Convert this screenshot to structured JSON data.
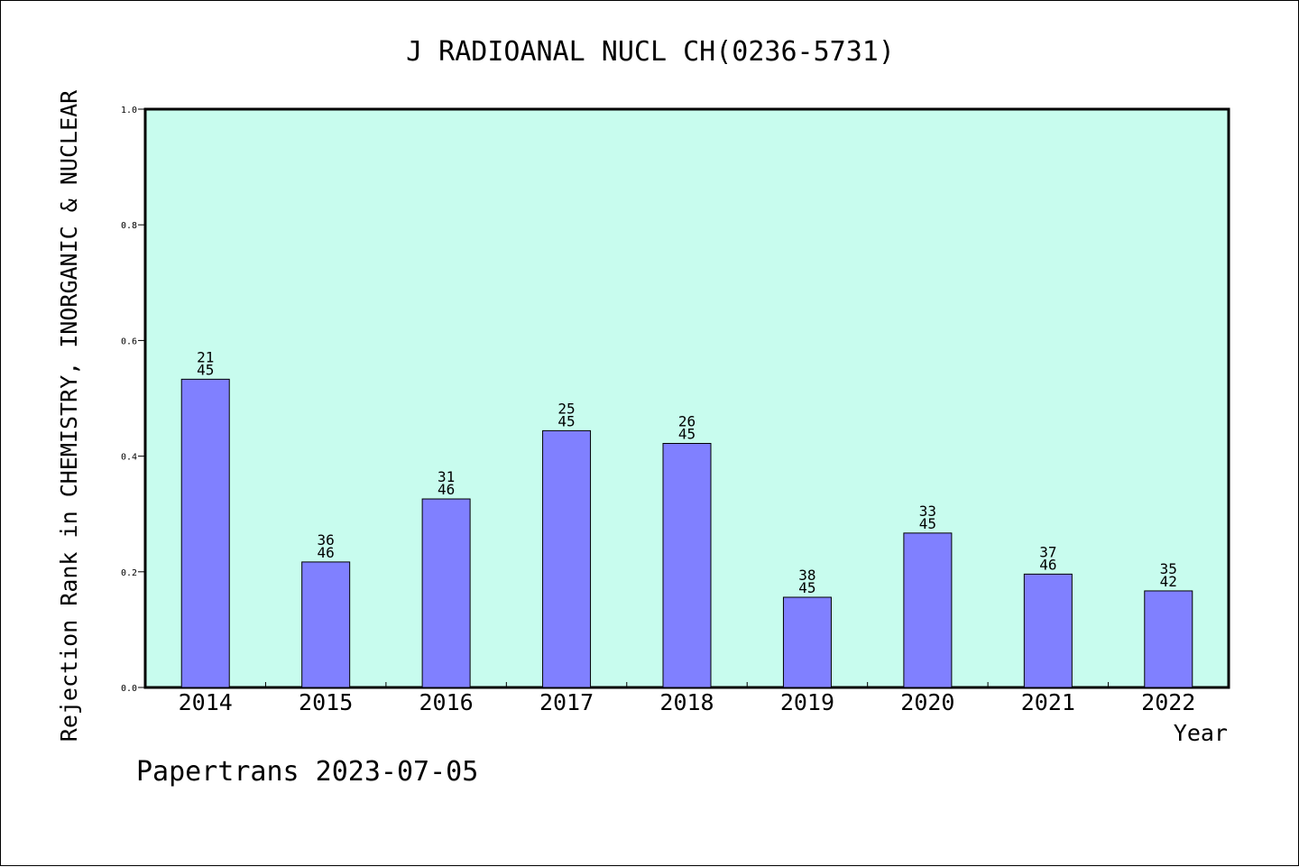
{
  "chart_data": {
    "type": "bar",
    "title": "J RADIOANAL NUCL CH(0236-5731)",
    "ylabel": "Rejection Rank in CHEMISTRY, INORGANIC & NUCLEAR",
    "xlabel": "Year",
    "ylim": [
      0,
      1.0
    ],
    "yticks": [
      "0.0",
      "0.2",
      "0.4",
      "0.6",
      "0.8",
      "1.0"
    ],
    "grid": false,
    "categories": [
      "2014",
      "2015",
      "2016",
      "2017",
      "2018",
      "2019",
      "2020",
      "2021",
      "2022"
    ],
    "values": [
      0.533,
      0.217,
      0.326,
      0.444,
      0.422,
      0.156,
      0.267,
      0.196,
      0.167
    ],
    "bar_labels": [
      {
        "top": "21",
        "bottom": "45"
      },
      {
        "top": "36",
        "bottom": "46"
      },
      {
        "top": "31",
        "bottom": "46"
      },
      {
        "top": "25",
        "bottom": "45"
      },
      {
        "top": "26",
        "bottom": "45"
      },
      {
        "top": "38",
        "bottom": "45"
      },
      {
        "top": "33",
        "bottom": "45"
      },
      {
        "top": "37",
        "bottom": "46"
      },
      {
        "top": "35",
        "bottom": "42"
      }
    ],
    "plot_background": "#c8fcee",
    "bar_color": "#8080ff",
    "footer": "Papertrans 2023-07-05"
  }
}
